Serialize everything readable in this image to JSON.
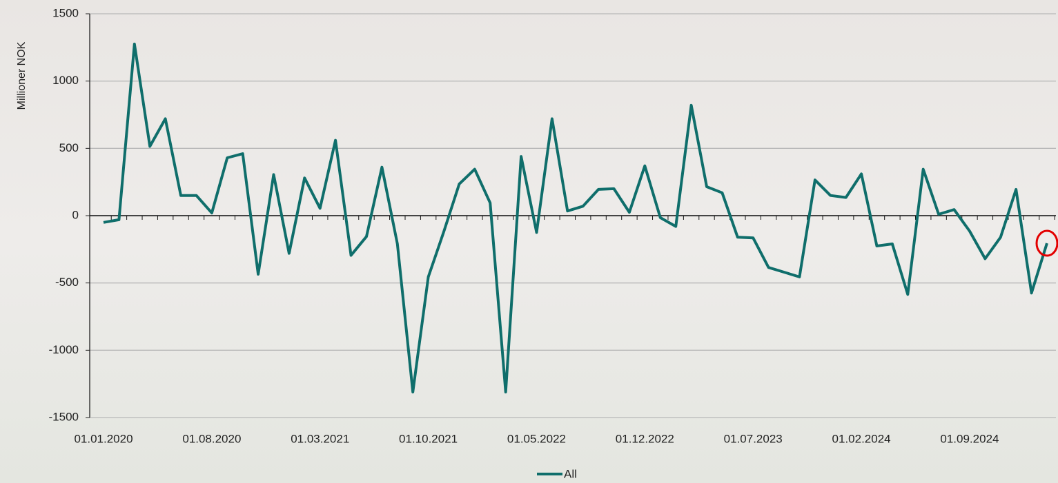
{
  "chart_data": {
    "type": "line",
    "y_label": "Millioner NOK",
    "categories": [
      "01.01.2020",
      null,
      null,
      null,
      null,
      null,
      null,
      "01.08.2020",
      null,
      null,
      null,
      null,
      null,
      null,
      "01.03.2021",
      null,
      null,
      null,
      null,
      null,
      null,
      "01.10.2021",
      null,
      null,
      null,
      null,
      null,
      null,
      "01.05.2022",
      null,
      null,
      null,
      null,
      null,
      null,
      "01.12.2022",
      null,
      null,
      null,
      null,
      null,
      null,
      "01.07.2023",
      null,
      null,
      null,
      null,
      null,
      null,
      "01.02.2024",
      null,
      null,
      null,
      null,
      null,
      null,
      "01.09.2024",
      null,
      null,
      null,
      null,
      null
    ],
    "series": [
      {
        "name": "All",
        "color": "#0f6e6b",
        "values": [
          -50,
          -30,
          1275,
          515,
          720,
          150,
          150,
          20,
          430,
          460,
          -435,
          305,
          -280,
          280,
          55,
          560,
          -295,
          -155,
          360,
          -210,
          -1310,
          -455,
          -120,
          235,
          345,
          95,
          -1310,
          440,
          -125,
          720,
          35,
          70,
          195,
          200,
          25,
          370,
          -15,
          -80,
          820,
          215,
          170,
          -160,
          -165,
          -385,
          -420,
          -455,
          265,
          150,
          135,
          310,
          -225,
          -210,
          -585,
          345,
          10,
          45,
          -115,
          -320,
          -160,
          195,
          -575,
          -205
        ]
      }
    ],
    "ylim": [
      -1500,
      1500
    ],
    "yticks": [
      -1500,
      -1000,
      -500,
      0,
      500,
      1000,
      1500
    ],
    "grid": true,
    "legend": "bottom"
  }
}
